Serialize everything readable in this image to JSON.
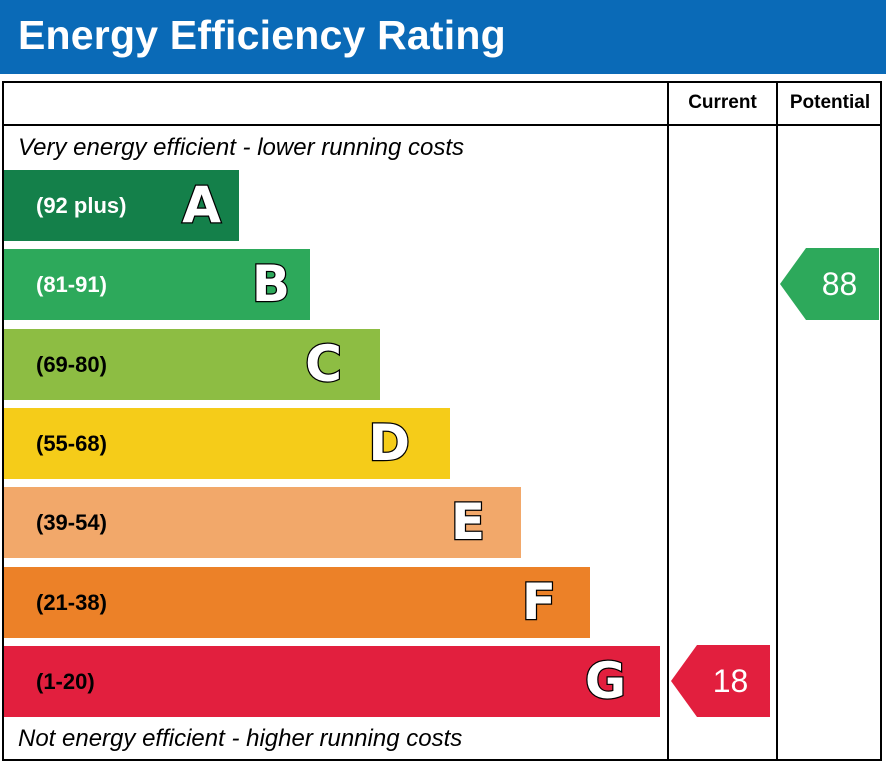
{
  "title": "Energy Efficiency Rating",
  "columns": {
    "current": "Current",
    "potential": "Potential"
  },
  "top_caption": "Very energy efficient - lower running costs",
  "bottom_caption": "Not energy efficient - higher running costs",
  "chart_data": {
    "type": "bar",
    "categories": [
      "A",
      "B",
      "C",
      "D",
      "E",
      "F",
      "G"
    ],
    "ranges": [
      "(92 plus)",
      "(81-91)",
      "(69-80)",
      "(55-68)",
      "(39-54)",
      "(21-38)",
      "(1-20)"
    ],
    "colors": [
      "#14804a",
      "#2da95b",
      "#8dbd43",
      "#f5cc19",
      "#f2a86a",
      "#ec8128",
      "#e21f3e"
    ],
    "range_text_colors": [
      "#ffffff",
      "#ffffff",
      "#000000",
      "#000000",
      "#000000",
      "#000000",
      "#000000"
    ],
    "current": {
      "value": "18",
      "band": "G"
    },
    "potential": {
      "value": "88",
      "band": "B"
    }
  }
}
